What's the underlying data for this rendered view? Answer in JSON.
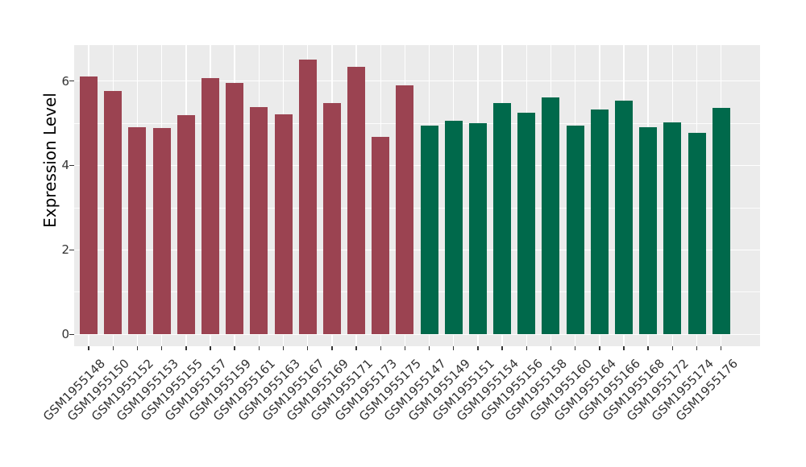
{
  "chart_data": {
    "type": "bar",
    "title": "",
    "xlabel": "",
    "ylabel": "Expression Level",
    "categories": [
      "GSM1955148",
      "GSM1955150",
      "GSM1955152",
      "GSM1955153",
      "GSM1955155",
      "GSM1955157",
      "GSM1955159",
      "GSM1955161",
      "GSM1955163",
      "GSM1955167",
      "GSM1955169",
      "GSM1955171",
      "GSM1955173",
      "GSM1955175",
      "GSM1955147",
      "GSM1955149",
      "GSM1955151",
      "GSM1955154",
      "GSM1955156",
      "GSM1955158",
      "GSM1955160",
      "GSM1955164",
      "GSM1955166",
      "GSM1955168",
      "GSM1955172",
      "GSM1955174",
      "GSM1955176"
    ],
    "values": [
      6.1,
      5.76,
      4.91,
      4.89,
      5.2,
      6.07,
      5.96,
      5.39,
      5.21,
      6.51,
      5.47,
      6.34,
      4.68,
      5.89,
      4.95,
      5.06,
      5.01,
      5.47,
      5.24,
      5.61,
      4.95,
      5.32,
      5.54,
      4.9,
      5.02,
      4.77,
      5.36
    ],
    "series": [
      {
        "name": "maroon-group",
        "color": "#9B4351",
        "start": 0,
        "end": 13
      },
      {
        "name": "green-group",
        "color": "#00694B",
        "start": 14,
        "end": 26
      }
    ],
    "y_ticks": [
      0,
      2,
      4,
      6
    ],
    "y_minor_ticks": [
      1,
      3,
      5
    ],
    "ylim": [
      -0.28,
      6.85
    ],
    "legend": "none",
    "grid": "on",
    "colors": {
      "panel_background": "#EBEBEB",
      "grid_line": "#FFFFFF",
      "tick_mark": "#333333",
      "tick_label": "#333333",
      "axis_title": "#000000",
      "figure_background": "#FFFFFF"
    }
  }
}
